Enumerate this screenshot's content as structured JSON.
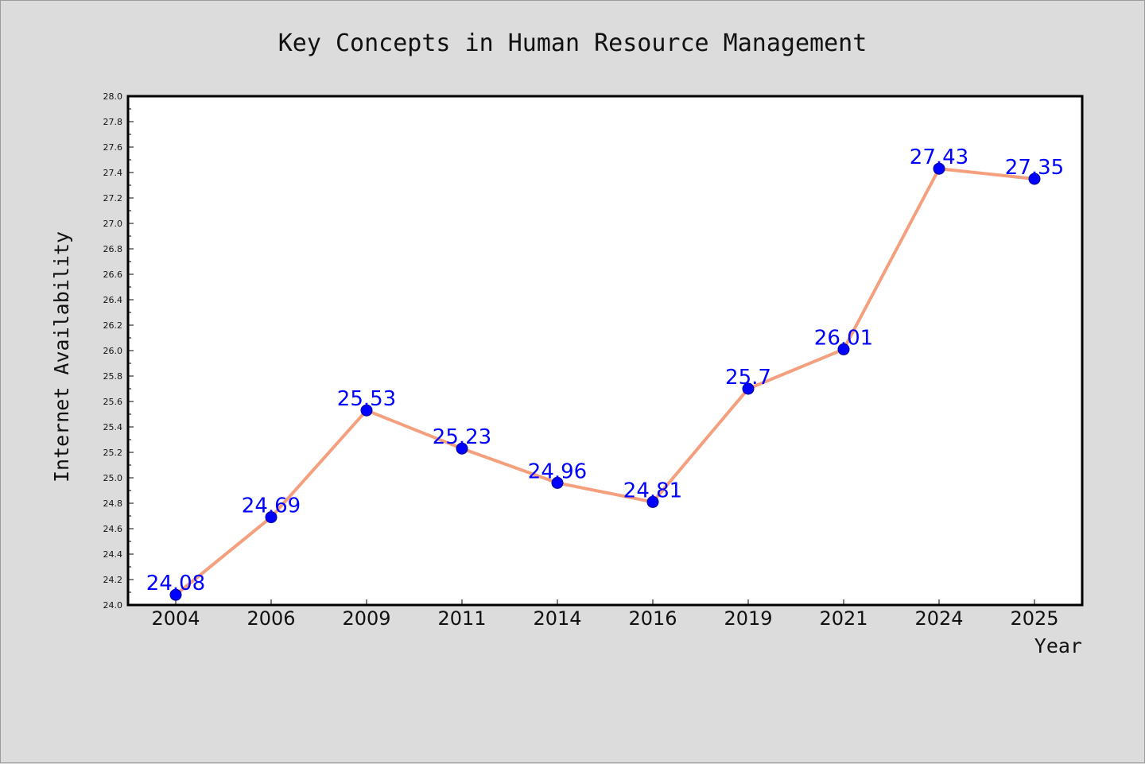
{
  "chart_data": {
    "type": "line",
    "title": "Key Concepts in Human Resource Management",
    "xlabel": "Year",
    "ylabel": "Internet Availability",
    "categories": [
      "2004",
      "2006",
      "2009",
      "2011",
      "2014",
      "2016",
      "2019",
      "2021",
      "2024",
      "2025"
    ],
    "series": [
      {
        "values": [
          24.08,
          24.69,
          25.53,
          25.23,
          24.96,
          24.81,
          25.7,
          26.01,
          27.43,
          27.35
        ],
        "data_labels": [
          "24.08",
          "24.69",
          "25.53",
          "25.23",
          "24.96",
          "24.81",
          "25.7",
          "26.01",
          "27.43",
          "27.35"
        ]
      }
    ],
    "ylim": [
      24.0,
      28.0
    ],
    "yticks": [
      "24.0",
      "24.2",
      "24.4",
      "24.6",
      "24.8",
      "25.0",
      "25.2",
      "25.4",
      "25.6",
      "25.8",
      "26.0",
      "26.2",
      "26.4",
      "26.6",
      "26.8",
      "27.0",
      "27.2",
      "27.4",
      "27.6",
      "27.8",
      "28.0"
    ],
    "grid": false,
    "colors": {
      "line": "#f4a07e",
      "marker": "#0000ff",
      "label": "#0000ff",
      "background": "#dcdcdc",
      "plot_background": "#ffffff"
    }
  }
}
